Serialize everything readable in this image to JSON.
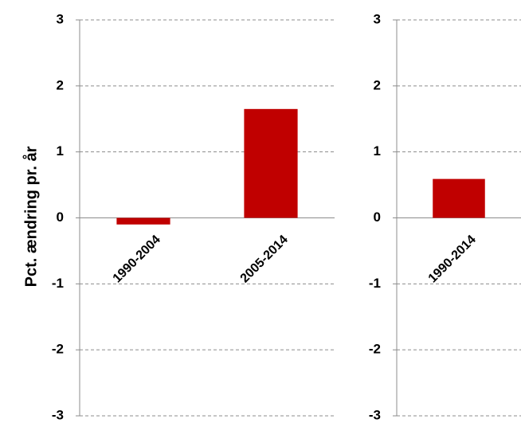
{
  "chart_data": [
    {
      "type": "bar",
      "categories": [
        "1990-2004",
        "2005-2014"
      ],
      "values": [
        -0.1,
        1.65
      ],
      "ylabel": "Pct. ændring pr. år",
      "ylim": [
        -3,
        3
      ],
      "yticks": [
        3,
        2,
        1,
        0,
        -1,
        -2,
        -3
      ],
      "grid": true,
      "bar_color": "#c00000"
    },
    {
      "type": "bar",
      "categories": [
        "1990-2014"
      ],
      "values": [
        0.59
      ],
      "ylim": [
        -3,
        3
      ],
      "yticks": [
        3,
        2,
        1,
        0,
        -1,
        -2,
        -3
      ],
      "grid": true,
      "bar_color": "#c00000"
    }
  ]
}
